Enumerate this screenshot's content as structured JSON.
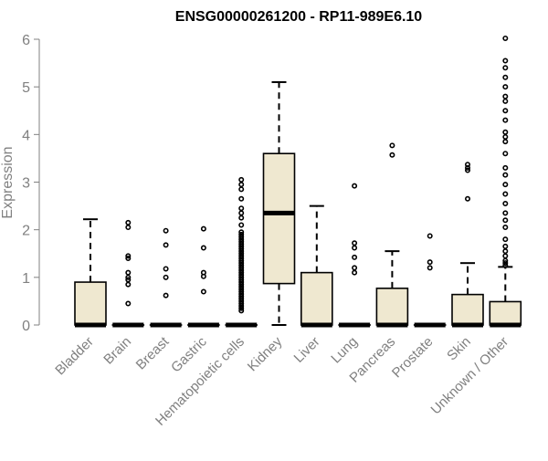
{
  "chart_data": {
    "type": "box",
    "title": "ENSG00000261200 - RP11-989E6.10",
    "ylabel": "Expression",
    "xlabel": "",
    "ylim": [
      0,
      6
    ],
    "yticks": [
      0,
      1,
      2,
      3,
      4,
      5,
      6
    ],
    "grid": false,
    "legend": "none",
    "box_fill": "#efe8d0",
    "box_stroke": "#000000",
    "categories": [
      {
        "name": "Bladder",
        "q1": 0,
        "median": 0,
        "q3": 0.9,
        "whisker_low": 0,
        "whisker_high": 2.22,
        "outliers": []
      },
      {
        "name": "Brain",
        "q1": 0,
        "median": 0,
        "q3": 0,
        "whisker_low": 0,
        "whisker_high": 0,
        "outliers": [
          2.15,
          2.05,
          1.45,
          1.4,
          1.1,
          1.0,
          0.95,
          0.85,
          0.45
        ]
      },
      {
        "name": "Breast",
        "q1": 0,
        "median": 0,
        "q3": 0,
        "whisker_low": 0,
        "whisker_high": 0,
        "outliers": [
          1.98,
          1.68,
          1.18,
          1.0,
          0.62
        ]
      },
      {
        "name": "Gastric",
        "q1": 0,
        "median": 0,
        "q3": 0,
        "whisker_low": 0,
        "whisker_high": 0,
        "outliers": [
          2.02,
          1.62,
          1.1,
          1.02,
          0.7
        ]
      },
      {
        "name": "Hematopoietic cells",
        "q1": 0,
        "median": 0,
        "q3": 0,
        "whisker_low": 0,
        "whisker_high": 0,
        "outliers": [
          3.05,
          2.95,
          2.85,
          2.65,
          2.45,
          2.35,
          2.25,
          2.1,
          1.95,
          1.9,
          1.85,
          1.8,
          1.75,
          1.7,
          1.65,
          1.6,
          1.55,
          1.5,
          1.45,
          1.4,
          1.35,
          1.3,
          1.25,
          1.2,
          1.15,
          1.1,
          1.05,
          1.0,
          0.95,
          0.9,
          0.85,
          0.8,
          0.75,
          0.7,
          0.65,
          0.6,
          0.55,
          0.5,
          0.45,
          0.4,
          0.35,
          0.3
        ]
      },
      {
        "name": "Kidney",
        "q1": 0.87,
        "median": 2.35,
        "q3": 3.6,
        "whisker_low": 0,
        "whisker_high": 5.1,
        "outliers": []
      },
      {
        "name": "Liver",
        "q1": 0,
        "median": 0,
        "q3": 1.1,
        "whisker_low": 0,
        "whisker_high": 2.5,
        "outliers": []
      },
      {
        "name": "Lung",
        "q1": 0,
        "median": 0,
        "q3": 0,
        "whisker_low": 0,
        "whisker_high": 0,
        "outliers": [
          2.92,
          1.72,
          1.62,
          1.42,
          1.2,
          1.1
        ]
      },
      {
        "name": "Pancreas",
        "q1": 0,
        "median": 0,
        "q3": 0.77,
        "whisker_low": 0,
        "whisker_high": 1.55,
        "outliers": [
          3.77,
          3.57
        ]
      },
      {
        "name": "Prostate",
        "q1": 0,
        "median": 0,
        "q3": 0,
        "whisker_low": 0,
        "whisker_high": 0,
        "outliers": [
          1.87,
          1.32,
          1.2
        ]
      },
      {
        "name": "Skin",
        "q1": 0,
        "median": 0,
        "q3": 0.64,
        "whisker_low": 0,
        "whisker_high": 1.3,
        "outliers": [
          3.37,
          3.3,
          3.25,
          2.65
        ]
      },
      {
        "name": "Unknown / Other",
        "q1": 0,
        "median": 0,
        "q3": 0.49,
        "whisker_low": 0,
        "whisker_high": 1.22,
        "outliers": [
          6.02,
          5.55,
          5.4,
          5.2,
          5.0,
          4.8,
          4.7,
          4.5,
          4.3,
          4.05,
          3.95,
          3.85,
          3.6,
          3.3,
          3.15,
          2.95,
          2.75,
          2.55,
          2.35,
          2.2,
          2.05,
          1.8,
          1.65,
          1.55,
          1.45,
          1.35,
          1.3,
          1.25
        ]
      }
    ]
  }
}
